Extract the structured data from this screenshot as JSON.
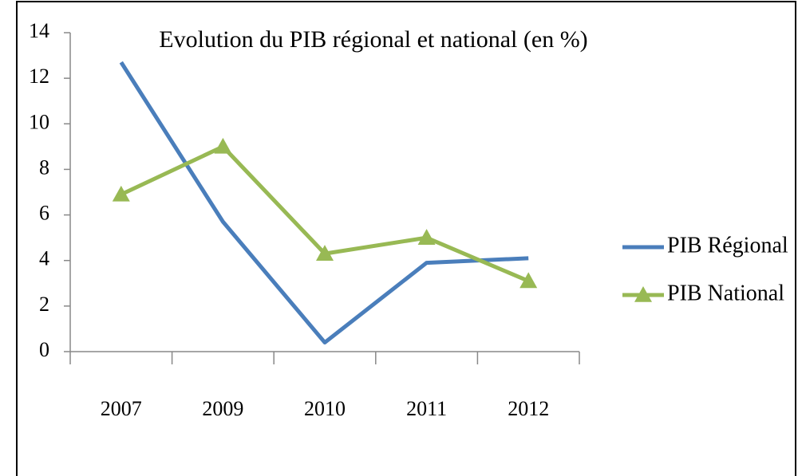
{
  "chart_data": {
    "type": "line",
    "title": "Evolution du PIB régional et national  (en %)",
    "categories": [
      "2007",
      "2009",
      "2010",
      "2011",
      "2012"
    ],
    "series": [
      {
        "name": "PIB Régional",
        "color": "#4a7ebb",
        "marker": "none",
        "values": [
          12.7,
          5.7,
          0.4,
          3.9,
          4.1
        ]
      },
      {
        "name": "PIB National",
        "color": "#98b954",
        "marker": "triangle",
        "values": [
          6.9,
          9.0,
          4.3,
          5.0,
          3.1
        ]
      }
    ],
    "ylim": [
      0,
      14
    ],
    "yticks": [
      0,
      2,
      4,
      6,
      8,
      10,
      12,
      14
    ],
    "grid": false,
    "legend": "right"
  }
}
